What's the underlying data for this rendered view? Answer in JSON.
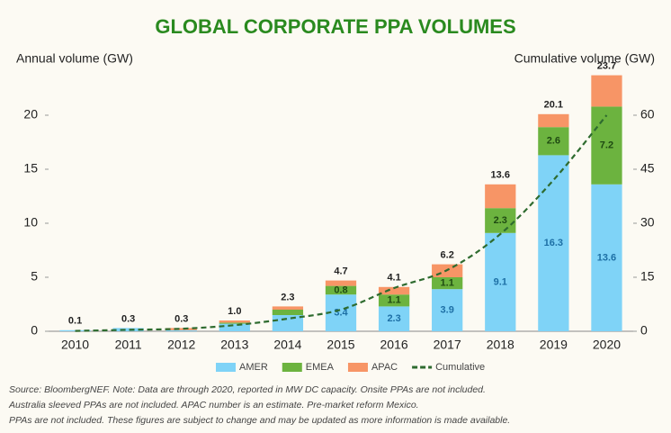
{
  "chart_data": {
    "type": "bar",
    "stacked": true,
    "title": "GLOBAL CORPORATE PPA VOLUMES",
    "ylabel": "Annual volume (GW)",
    "y2label": "Cumulative volume (GW)",
    "categories": [
      "2010",
      "2011",
      "2012",
      "2013",
      "2014",
      "2015",
      "2016",
      "2017",
      "2018",
      "2019",
      "2020"
    ],
    "series": [
      {
        "name": "AMER",
        "color": "#7fd3f7",
        "values": [
          0.1,
          0.3,
          0.1,
          0.7,
          1.5,
          3.4,
          2.3,
          3.9,
          9.1,
          16.3,
          13.6
        ],
        "value_labels": [
          null,
          null,
          null,
          null,
          null,
          "3.4",
          "2.3",
          "3.9",
          "9.1",
          "16.3",
          "13.6"
        ],
        "label_color": "#1d6fa5"
      },
      {
        "name": "EMEA",
        "color": "#6cb33f",
        "values": [
          0,
          0,
          0,
          0.1,
          0.5,
          0.8,
          1.1,
          1.1,
          2.3,
          2.6,
          7.2
        ],
        "value_labels": [
          null,
          null,
          null,
          null,
          null,
          "0.8",
          "1.1",
          "1.1",
          "2.3",
          "2.6",
          "7.2"
        ],
        "label_color": "#1f4a12"
      },
      {
        "name": "APAC",
        "color": "#f79566",
        "values": [
          0,
          0,
          0.2,
          0.2,
          0.3,
          0.5,
          0.7,
          1.2,
          2.2,
          1.2,
          2.9
        ]
      },
      {
        "name": "Cumulative",
        "type": "line",
        "axis": "y2",
        "color": "#2e6b2f",
        "dashed": true,
        "values": [
          0.1,
          0.4,
          0.7,
          1.7,
          3.5,
          6,
          12,
          17,
          27,
          42,
          60
        ]
      }
    ],
    "totals": [
      "0.1",
      "0.3",
      "0.3",
      "1.0",
      "2.3",
      "4.7",
      "4.1",
      "6.2",
      "13.6",
      "20.1",
      "23.7"
    ],
    "ylim": [
      0,
      24
    ],
    "yticks": [
      0,
      5,
      10,
      15,
      20
    ],
    "y2lim": [
      0,
      72
    ],
    "y2ticks": [
      0,
      15,
      30,
      45,
      60
    ],
    "legend": "bottom",
    "footnote": [
      "Source: BloombergNEF. Note: Data are through 2020, reported in MW DC capacity. Onsite PPAs are not included.",
      "Australia sleeved PPAs are not included. APAC number is an estimate. Pre-market reform Mexico.",
      "PPAs are not included. These figures are subject to change and may be updated as more information is made available."
    ]
  }
}
